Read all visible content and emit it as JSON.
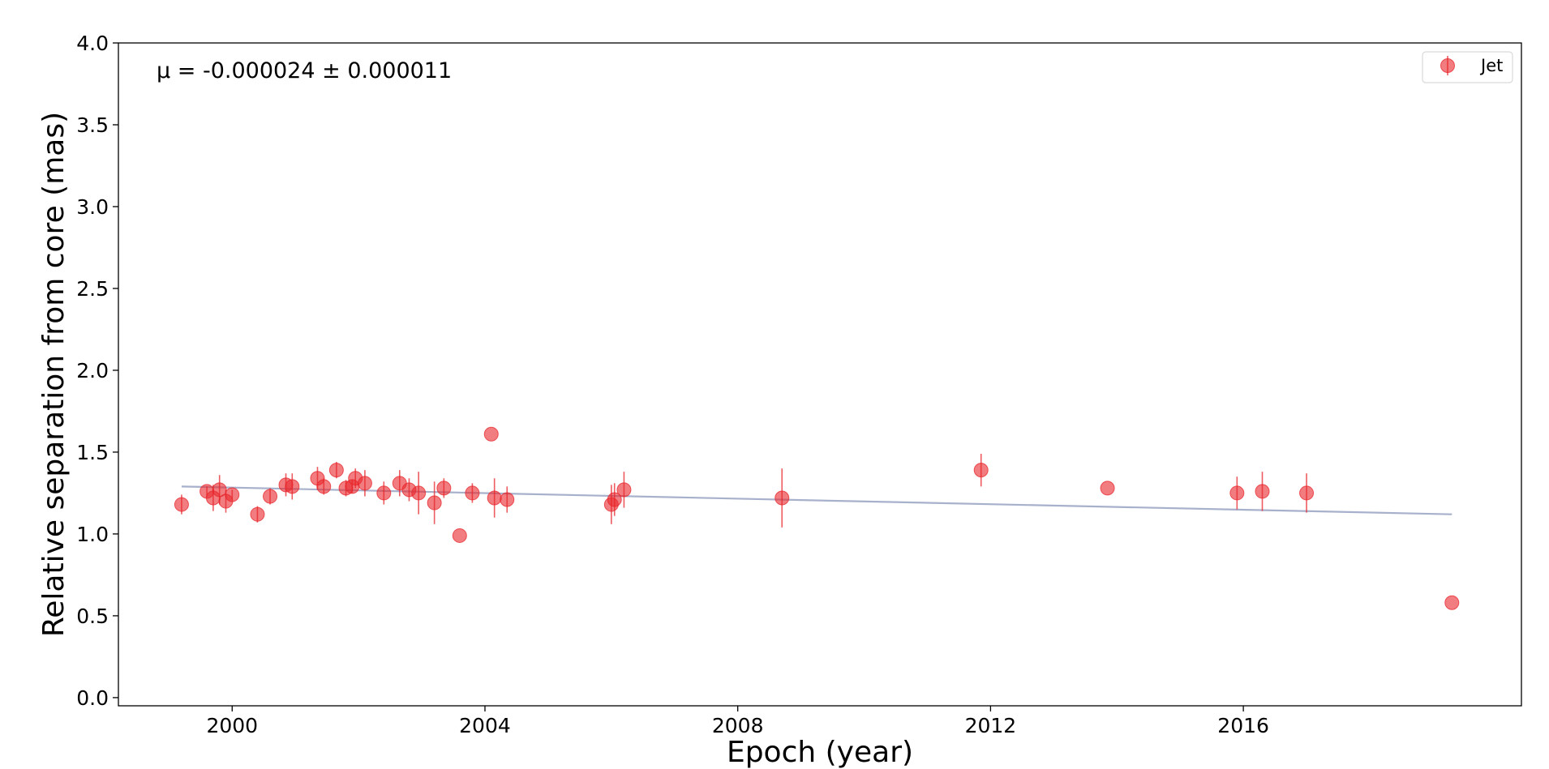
{
  "chart_data": {
    "type": "scatter",
    "title": "",
    "xlabel": "Epoch (year)",
    "ylabel": "Relative separation from core (mas)",
    "xlim": [
      1998.2,
      2020.4
    ],
    "ylim": [
      -0.05,
      4.0
    ],
    "xticks": [
      2000,
      2004,
      2008,
      2012,
      2016
    ],
    "yticks": [
      0.0,
      0.5,
      1.0,
      1.5,
      2.0,
      2.5,
      3.0,
      3.5,
      4.0
    ],
    "grid": false,
    "legend": {
      "placement": "top-right",
      "entries": [
        "Jet"
      ]
    },
    "annotation": "μ = -0.000024 ± 0.000011",
    "colors": {
      "points": "#e8262b",
      "fit_line": "#a8b1cc"
    },
    "series": [
      {
        "name": "Jet",
        "points": [
          {
            "x": 1999.2,
            "y": 1.18,
            "err": 0.06
          },
          {
            "x": 1999.6,
            "y": 1.26,
            "err": 0.03
          },
          {
            "x": 1999.7,
            "y": 1.22,
            "err": 0.08
          },
          {
            "x": 1999.8,
            "y": 1.27,
            "err": 0.09
          },
          {
            "x": 1999.9,
            "y": 1.2,
            "err": 0.07
          },
          {
            "x": 2000.0,
            "y": 1.24,
            "err": 0.03
          },
          {
            "x": 2000.4,
            "y": 1.12,
            "err": 0.05
          },
          {
            "x": 2000.6,
            "y": 1.23,
            "err": 0.05
          },
          {
            "x": 2000.85,
            "y": 1.3,
            "err": 0.07
          },
          {
            "x": 2000.95,
            "y": 1.29,
            "err": 0.08
          },
          {
            "x": 2001.35,
            "y": 1.34,
            "err": 0.07
          },
          {
            "x": 2001.45,
            "y": 1.29,
            "err": 0.05
          },
          {
            "x": 2001.65,
            "y": 1.39,
            "err": 0.05
          },
          {
            "x": 2001.8,
            "y": 1.28,
            "err": 0.05
          },
          {
            "x": 2001.9,
            "y": 1.29,
            "err": 0.04
          },
          {
            "x": 2001.95,
            "y": 1.34,
            "err": 0.06
          },
          {
            "x": 2002.1,
            "y": 1.31,
            "err": 0.08
          },
          {
            "x": 2002.4,
            "y": 1.25,
            "err": 0.07
          },
          {
            "x": 2002.65,
            "y": 1.31,
            "err": 0.08
          },
          {
            "x": 2002.8,
            "y": 1.27,
            "err": 0.07
          },
          {
            "x": 2002.95,
            "y": 1.25,
            "err": 0.13
          },
          {
            "x": 2003.2,
            "y": 1.19,
            "err": 0.13
          },
          {
            "x": 2003.35,
            "y": 1.28,
            "err": 0.06
          },
          {
            "x": 2003.6,
            "y": 0.99,
            "err": 0.0
          },
          {
            "x": 2003.8,
            "y": 1.25,
            "err": 0.06
          },
          {
            "x": 2004.1,
            "y": 1.61,
            "err": 0.0
          },
          {
            "x": 2004.15,
            "y": 1.22,
            "err": 0.12
          },
          {
            "x": 2004.35,
            "y": 1.21,
            "err": 0.08
          },
          {
            "x": 2006.0,
            "y": 1.18,
            "err": 0.12
          },
          {
            "x": 2006.05,
            "y": 1.21,
            "err": 0.1
          },
          {
            "x": 2006.2,
            "y": 1.27,
            "err": 0.11
          },
          {
            "x": 2008.7,
            "y": 1.22,
            "err": 0.18
          },
          {
            "x": 2011.85,
            "y": 1.39,
            "err": 0.1
          },
          {
            "x": 2013.85,
            "y": 1.28,
            "err": 0.0
          },
          {
            "x": 2015.9,
            "y": 1.25,
            "err": 0.1
          },
          {
            "x": 2016.3,
            "y": 1.26,
            "err": 0.12
          },
          {
            "x": 2017.0,
            "y": 1.25,
            "err": 0.12
          },
          {
            "x": 2019.3,
            "y": 0.58,
            "err": 0.0
          }
        ]
      }
    ],
    "fit_line": {
      "x": [
        1999.2,
        2019.3
      ],
      "y": [
        1.29,
        1.12
      ]
    }
  }
}
